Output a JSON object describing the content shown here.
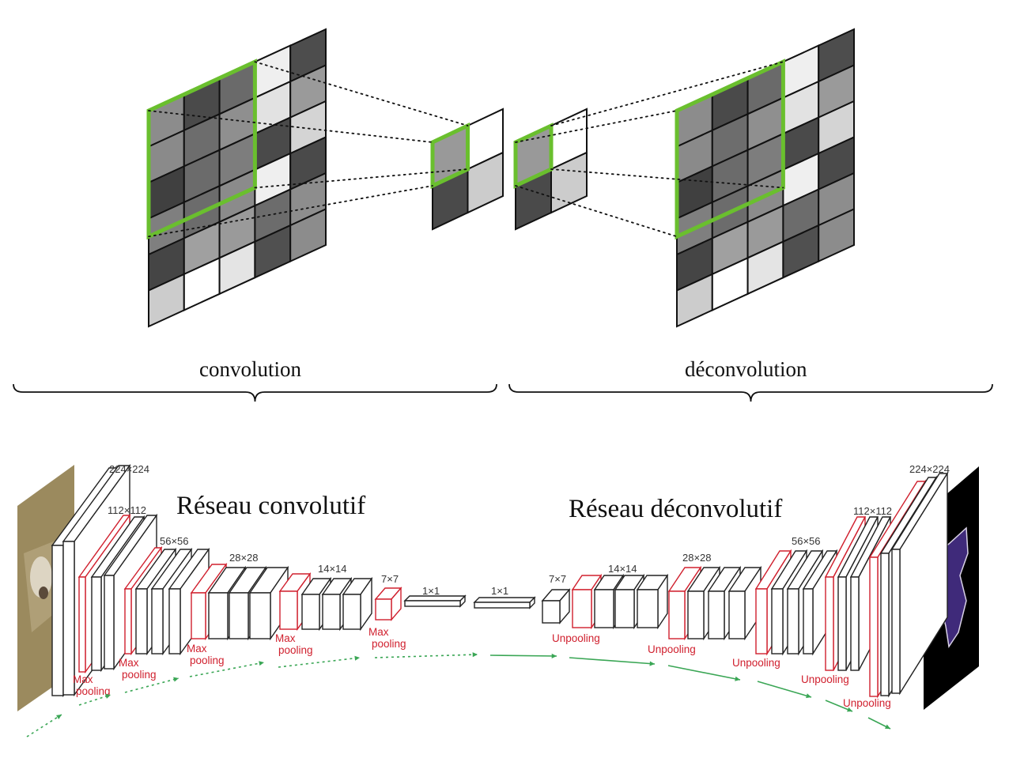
{
  "labels": {
    "convolution": "convolution",
    "deconvolution": "déconvolution",
    "conv_network": "Réseau convolutif",
    "deconv_network": "Réseau déconvolutif"
  },
  "colors": {
    "kernel_highlight": "#6abf2e",
    "pooling_layer": "#d0202e",
    "flow_arrow": "#3aa655",
    "grid_line": "#111111"
  },
  "grids": {
    "conv_input": [
      [
        "#8c8c8c",
        "#4a4a4a",
        "#6a6a6a",
        "#efefef",
        "#4d4d4d"
      ],
      [
        "#8a8a8a",
        "#6d6d6d",
        "#8f8f8f",
        "#e2e2e2",
        "#9a9a9a"
      ],
      [
        "#404040",
        "#6b6b6b",
        "#7d7d7d",
        "#4a4a4a",
        "#d4d4d4"
      ],
      [
        "#7f7f7f",
        "#6c6c6c",
        "#8b8b8b",
        "#efefef",
        "#4a4a4a"
      ],
      [
        "#454545",
        "#a0a0a0",
        "#9a9a9a",
        "#6c6c6c",
        "#8d8d8d"
      ],
      [
        "#cccccc",
        "#ffffff",
        "#e4e4e4",
        "#505050",
        "#8c8c8c"
      ]
    ],
    "conv_output": [
      [
        "#999999",
        "#ffffff"
      ],
      [
        "#4a4a4a",
        "#cccccc"
      ]
    ],
    "deconv_input": [
      [
        "#999999",
        "#ffffff"
      ],
      [
        "#4a4a4a",
        "#cccccc"
      ]
    ],
    "deconv_output": [
      [
        "#8c8c8c",
        "#4a4a4a",
        "#6a6a6a",
        "#efefef",
        "#4d4d4d"
      ],
      [
        "#8a8a8a",
        "#6d6d6d",
        "#8f8f8f",
        "#e2e2e2",
        "#9a9a9a"
      ],
      [
        "#404040",
        "#6b6b6b",
        "#7d7d7d",
        "#4a4a4a",
        "#d4d4d4"
      ],
      [
        "#7f7f7f",
        "#6c6c6c",
        "#8b8b8b",
        "#efefef",
        "#4a4a4a"
      ],
      [
        "#454545",
        "#a0a0a0",
        "#9a9a9a",
        "#6c6c6c",
        "#8d8d8d"
      ],
      [
        "#cccccc",
        "#ffffff",
        "#e4e4e4",
        "#505050",
        "#8c8c8c"
      ]
    ]
  },
  "network": {
    "dims": [
      "224×224",
      "112×112",
      "56×56",
      "28×28",
      "14×14",
      "7×7",
      "1×1",
      "1×1",
      "7×7",
      "14×14",
      "28×28",
      "56×56",
      "112×112",
      "224×224"
    ],
    "ops": {
      "max_pooling": [
        "Max",
        "pooling"
      ],
      "unpooling": "Unpooling"
    },
    "input_image": "photo-of-dog",
    "output_image": "segmentation-mask"
  }
}
